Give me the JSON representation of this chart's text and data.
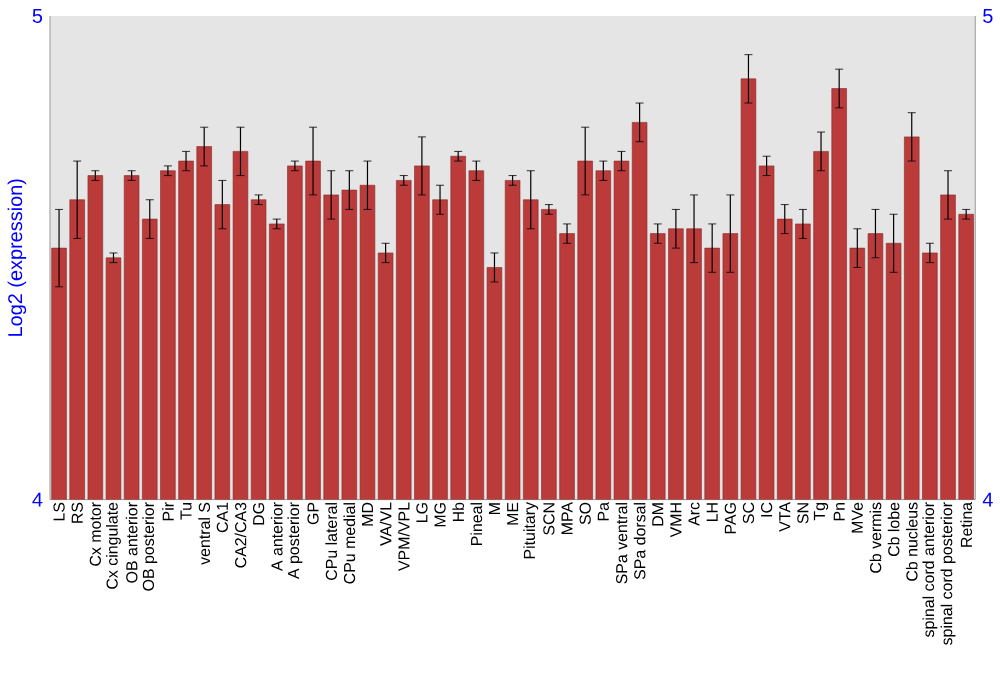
{
  "chart_data": {
    "type": "bar",
    "ylabel": "Log2 (expression)",
    "categories": [
      "LS",
      "RS",
      "Cx motor",
      "Cx cingulate",
      "OB anterior",
      "OB posterior",
      "Pir",
      "Tu",
      "ventral S",
      "CA1",
      "CA2/CA3",
      "DG",
      "A anterior",
      "A posterior",
      "GP",
      "CPu lateral",
      "CPu medial",
      "MD",
      "VA/VL",
      "VPM/VPL",
      "LG",
      "MG",
      "Hb",
      "Pineal",
      "M",
      "ME",
      "Pituitary",
      "SCN",
      "MPA",
      "SO",
      "Pa",
      "SPa ventral",
      "SPa dorsal",
      "DM",
      "VMH",
      "Arc",
      "LH",
      "PAG",
      "SC",
      "IC",
      "VTA",
      "SN",
      "Tg",
      "Pn",
      "MVe",
      "Cb vermis",
      "Cb lobe",
      "Cb nucleus",
      "spinal cord anterior",
      "spinal cord posterior",
      "Retina"
    ],
    "values": [
      4.52,
      4.62,
      4.67,
      4.5,
      4.67,
      4.58,
      4.68,
      4.7,
      4.73,
      4.61,
      4.72,
      4.62,
      4.57,
      4.69,
      4.7,
      4.63,
      4.64,
      4.65,
      4.51,
      4.66,
      4.69,
      4.62,
      4.71,
      4.68,
      4.48,
      4.66,
      4.62,
      4.6,
      4.55,
      4.7,
      4.68,
      4.7,
      4.78,
      4.55,
      4.56,
      4.56,
      4.52,
      4.55,
      4.87,
      4.69,
      4.58,
      4.57,
      4.72,
      4.85,
      4.52,
      4.55,
      4.53,
      4.75,
      4.51,
      4.63,
      4.59
    ],
    "errors": [
      0.08,
      0.08,
      0.01,
      0.01,
      0.01,
      0.04,
      0.01,
      0.02,
      0.04,
      0.05,
      0.05,
      0.01,
      0.01,
      0.01,
      0.07,
      0.05,
      0.04,
      0.05,
      0.02,
      0.01,
      0.06,
      0.03,
      0.01,
      0.02,
      0.03,
      0.01,
      0.06,
      0.01,
      0.02,
      0.07,
      0.02,
      0.02,
      0.04,
      0.02,
      0.04,
      0.07,
      0.05,
      0.08,
      0.05,
      0.02,
      0.03,
      0.03,
      0.04,
      0.04,
      0.04,
      0.05,
      0.06,
      0.05,
      0.02,
      0.05,
      0.01
    ],
    "color": "#bb3b3b",
    "ylim": [
      4,
      5
    ],
    "yticks": [
      4,
      5
    ],
    "y2lim": [
      4,
      5
    ],
    "y2ticks": [
      4,
      5
    ]
  }
}
